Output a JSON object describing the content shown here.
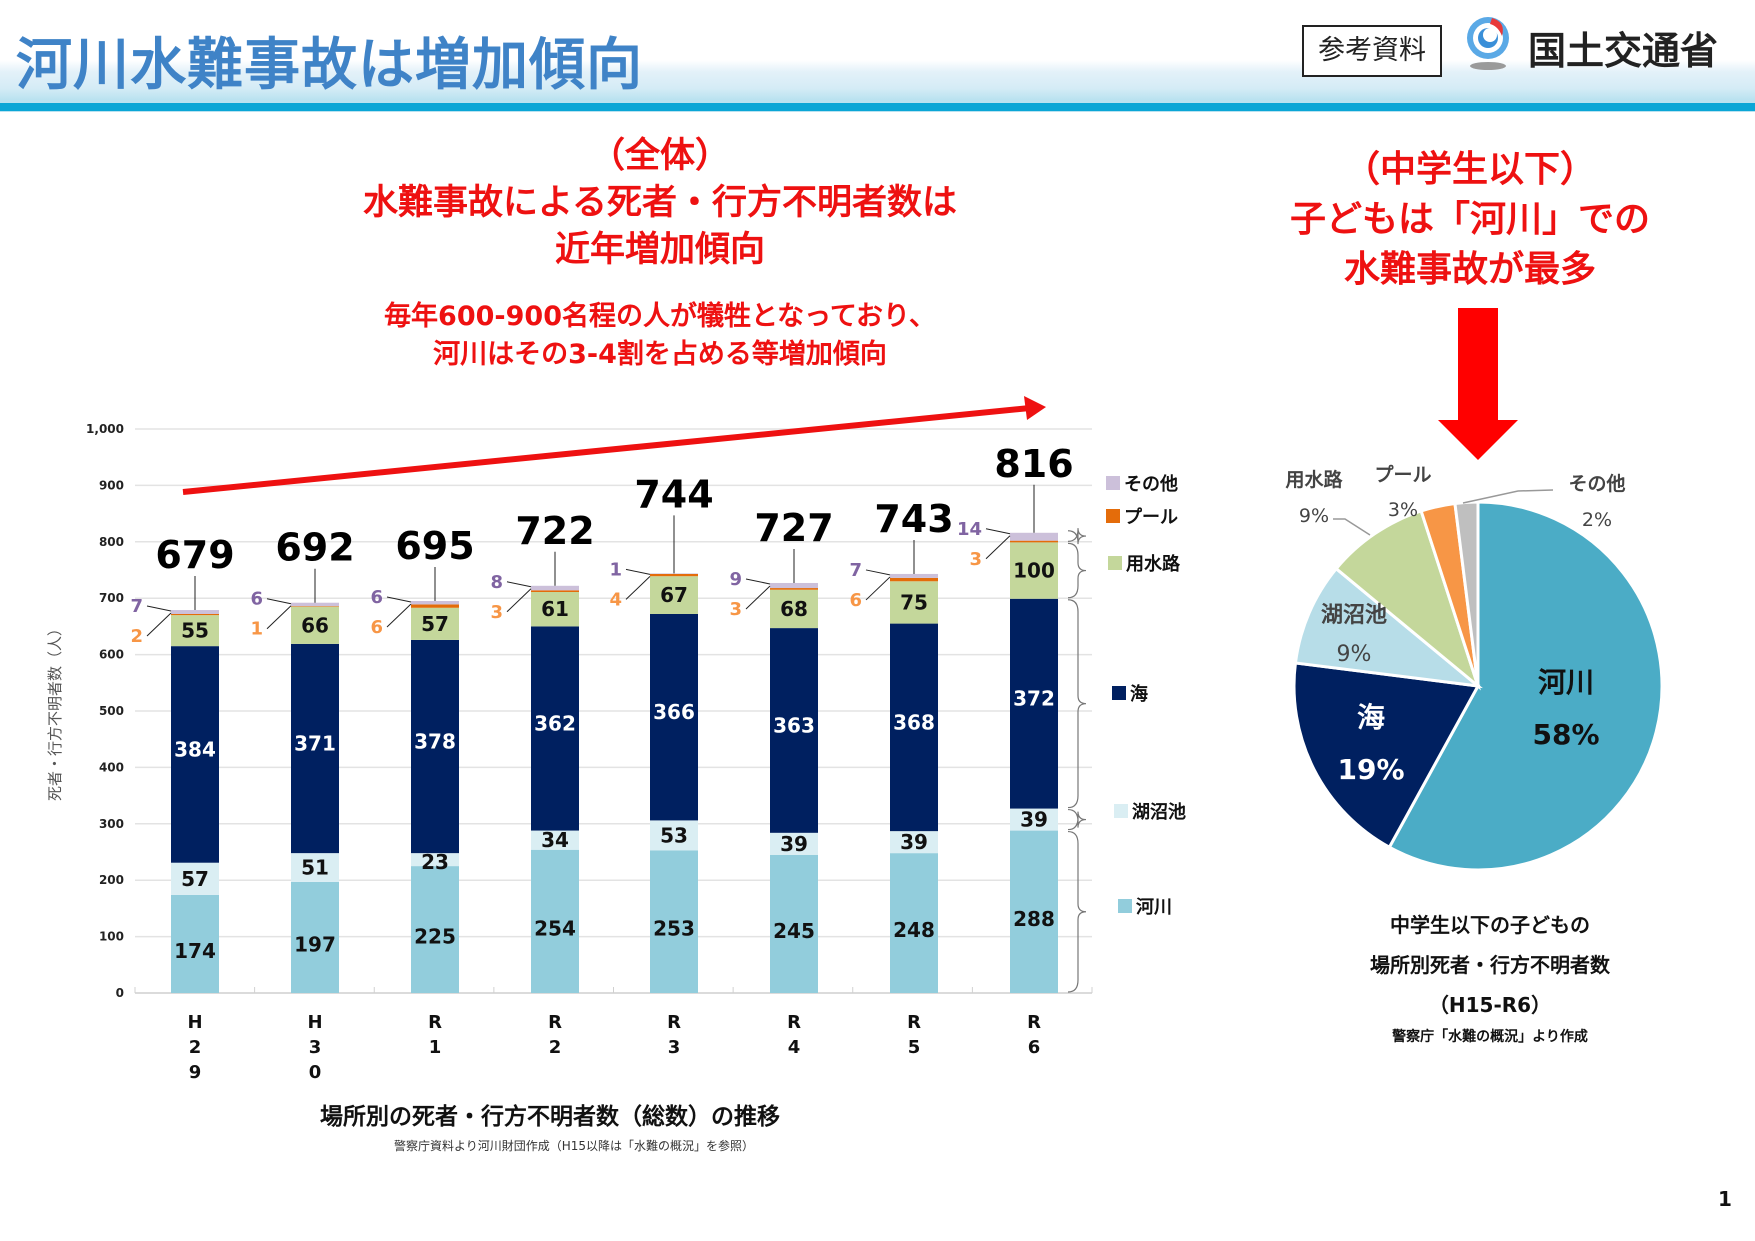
{
  "header": {
    "title": "河川水難事故は増加傾向",
    "reference_badge": "参考資料",
    "ministry_name": "国土交通省",
    "ministry_logo_icon": "mlit-logo-icon"
  },
  "left_headline": {
    "line1": "（全体）",
    "line2": "水難事故による死者・行方不明者数は",
    "line3": "近年増加傾向",
    "sub_line1": "毎年600-900名程の人が犠牲となっており、",
    "sub_line2": "河川はその3-4割を占める等増加傾向"
  },
  "right_headline": {
    "line1": "（中学生以下）",
    "line2": "子どもは「河川」での",
    "line3": "水難事故が最多"
  },
  "colors": {
    "river": "#92cddc",
    "lake": "#daeef3",
    "sea": "#002060",
    "canal": "#c4d79b",
    "pool": "#e46c0a",
    "other": "#ccc0da",
    "accent_red": "#ee1111",
    "title_blue": "#3f83c7"
  },
  "chart_data": [
    {
      "type": "bar",
      "stacked": true,
      "title": "場所別の死者・行方不明者数（総数）の推移",
      "source": "警察庁資料より河川財団作成（H15以降は「水難の概況」を参照）",
      "xlabel": "",
      "ylabel": "死者・行方不明者数（人）",
      "ylim": [
        0,
        1000
      ],
      "yticks": [
        "0",
        "100",
        "200",
        "300",
        "400",
        "500",
        "600",
        "700",
        "800",
        "900",
        "1,000"
      ],
      "ytick_values": [
        0,
        100,
        200,
        300,
        400,
        500,
        600,
        700,
        800,
        900,
        1000
      ],
      "grid": true,
      "legend_position": "right",
      "categories": [
        [
          "H",
          "2",
          "9"
        ],
        [
          "H",
          "3",
          "0"
        ],
        [
          "R",
          "1"
        ],
        [
          "R",
          "2"
        ],
        [
          "R",
          "3"
        ],
        [
          "R",
          "4"
        ],
        [
          "R",
          "5"
        ],
        [
          "R",
          "6"
        ]
      ],
      "category_names": [
        "H29",
        "H30",
        "R1",
        "R2",
        "R3",
        "R4",
        "R5",
        "R6"
      ],
      "series": [
        {
          "name": "河川",
          "color_key": "river",
          "values": [
            174,
            197,
            225,
            254,
            253,
            245,
            248,
            288
          ]
        },
        {
          "name": "湖沼池",
          "color_key": "lake",
          "values": [
            57,
            51,
            23,
            34,
            53,
            39,
            39,
            39
          ]
        },
        {
          "name": "海",
          "color_key": "sea",
          "values": [
            384,
            371,
            378,
            362,
            366,
            363,
            368,
            372
          ]
        },
        {
          "name": "用水路",
          "color_key": "canal",
          "values": [
            55,
            66,
            57,
            61,
            67,
            68,
            75,
            100
          ]
        },
        {
          "name": "プール",
          "color_key": "pool",
          "values": [
            2,
            1,
            6,
            3,
            4,
            3,
            6,
            3
          ]
        },
        {
          "name": "その他",
          "color_key": "other",
          "values": [
            7,
            6,
            6,
            8,
            1,
            9,
            7,
            14
          ]
        }
      ],
      "totals": [
        679,
        692,
        695,
        722,
        744,
        727,
        743,
        816
      ],
      "legend": [
        "その他",
        "プール",
        "用水路",
        "海",
        "湖沼池",
        "河川"
      ],
      "annotation": "increasing-trend-arrow"
    },
    {
      "type": "pie",
      "title": "中学生以下の子どもの場所別死者・行方不明者数（H15-R6）",
      "caption_lines": [
        "中学生以下の子どもの",
        "場所別死者・行方不明者数",
        "（H15-R6）"
      ],
      "source": "警察庁「水難の概況」より作成",
      "slices": [
        {
          "label": "河川",
          "value": 58,
          "display": "58%",
          "color": "#4bacc6"
        },
        {
          "label": "海",
          "value": 19,
          "display": "19%",
          "color": "#002060"
        },
        {
          "label": "湖沼池",
          "value": 9,
          "display": "9%",
          "color": "#b7dde8"
        },
        {
          "label": "用水路",
          "value": 9,
          "display": "9%",
          "color": "#c4d79b"
        },
        {
          "label": "プール",
          "value": 3,
          "display": "3%",
          "color": "#f79646"
        },
        {
          "label": "その他",
          "value": 2,
          "display": "2%",
          "color": "#bfbfbf"
        }
      ]
    }
  ],
  "footer": {
    "page_number": "1"
  }
}
